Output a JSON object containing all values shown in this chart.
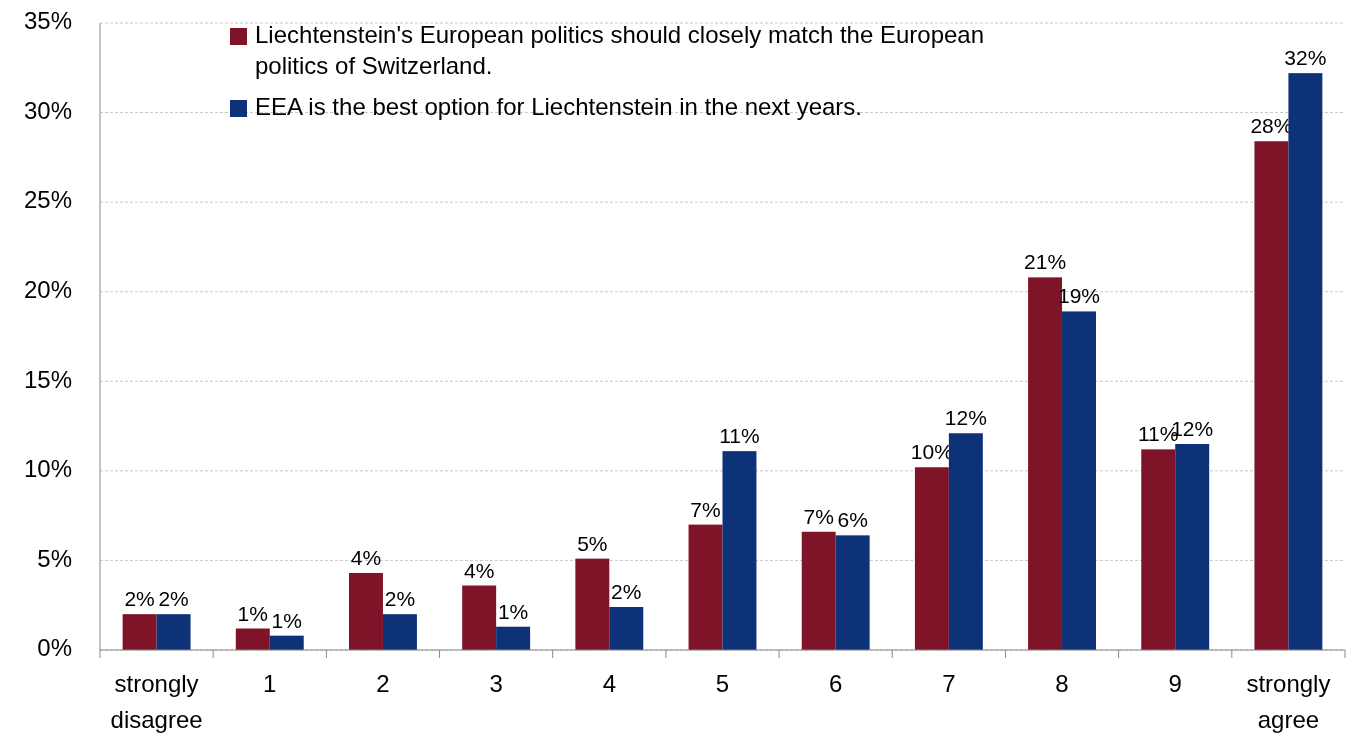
{
  "chart_data": {
    "type": "bar",
    "categories": [
      "strongly disagree",
      "1",
      "2",
      "3",
      "4",
      "5",
      "6",
      "7",
      "8",
      "9",
      "strongly agree"
    ],
    "series": [
      {
        "name": "Liechtenstein's European politics should closely match the European politics of Switzerland.",
        "color": "#7f1428",
        "values": [
          2.0,
          1.2,
          4.3,
          3.6,
          5.1,
          7.0,
          6.6,
          10.2,
          20.8,
          11.2,
          28.4
        ],
        "value_labels": [
          "2%",
          "1%",
          "4%",
          "4%",
          "5%",
          "7%",
          "7%",
          "10%",
          "21%",
          "11%",
          "28%"
        ]
      },
      {
        "name": "EEA is the best option for Liechtenstein in the next years.",
        "color": "#0e3277",
        "values": [
          2.0,
          0.8,
          2.0,
          1.3,
          2.4,
          11.1,
          6.4,
          12.1,
          18.9,
          11.5,
          32.2
        ],
        "value_labels": [
          "2%",
          "1%",
          "2%",
          "1%",
          "2%",
          "11%",
          "6%",
          "12%",
          "19%",
          "12%",
          "32%"
        ]
      }
    ],
    "ylim": [
      0,
      35
    ],
    "yticks": [
      {
        "value": 0,
        "label": "0%"
      },
      {
        "value": 5,
        "label": "5%"
      },
      {
        "value": 10,
        "label": "10%"
      },
      {
        "value": 15,
        "label": "15%"
      },
      {
        "value": 20,
        "label": "20%"
      },
      {
        "value": 25,
        "label": "25%"
      },
      {
        "value": 30,
        "label": "30%"
      },
      {
        "value": 35,
        "label": "35%"
      }
    ],
    "grid": "y",
    "legend": "top"
  }
}
